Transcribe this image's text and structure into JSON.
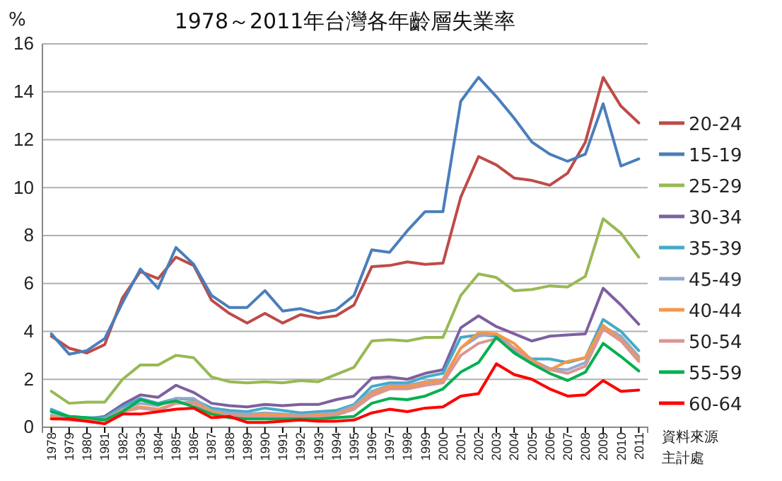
{
  "chart_data": {
    "type": "line",
    "title": "1978～2011年台灣各年齡層失業率",
    "ylabel": "%",
    "annotations": [
      "資料來源",
      "主計處"
    ],
    "categories": [
      "1978",
      "1979",
      "1980",
      "1981",
      "1982",
      "1983",
      "1984",
      "1985",
      "1986",
      "1987",
      "1988",
      "1989",
      "1990",
      "1991",
      "1992",
      "1993",
      "1994",
      "1995",
      "1996",
      "1997",
      "1998",
      "1999",
      "2000",
      "2001",
      "2002",
      "2003",
      "2004",
      "2005",
      "2006",
      "2007",
      "2008",
      "2009",
      "2010",
      "2011"
    ],
    "ylim": [
      0,
      16
    ],
    "yticks": [
      0,
      2,
      4,
      6,
      8,
      10,
      12,
      14,
      16
    ],
    "grid": "y",
    "legend": "right",
    "marker": "none",
    "line_style": "solid",
    "series": [
      {
        "name": "20-24",
        "color": "#be4b48",
        "values": [
          3.8,
          3.3,
          3.1,
          3.45,
          5.4,
          6.5,
          6.2,
          7.1,
          6.75,
          5.3,
          4.75,
          4.35,
          4.75,
          4.35,
          4.7,
          4.55,
          4.65,
          5.1,
          6.7,
          6.75,
          6.9,
          6.8,
          6.85,
          9.6,
          11.3,
          10.95,
          10.4,
          10.3,
          10.1,
          10.6,
          11.9,
          14.6,
          13.4,
          12.7
        ]
      },
      {
        "name": "15-19",
        "color": "#4a7ebb",
        "values": [
          3.9,
          3.05,
          3.2,
          3.7,
          5.2,
          6.6,
          5.8,
          7.5,
          6.8,
          5.5,
          5.0,
          5.0,
          5.7,
          4.85,
          4.95,
          4.75,
          4.9,
          5.5,
          7.4,
          7.3,
          8.2,
          9.0,
          9.0,
          13.6,
          14.6,
          13.8,
          12.9,
          11.9,
          11.4,
          11.1,
          11.4,
          13.5,
          10.9,
          11.2
        ]
      },
      {
        "name": "25-29",
        "color": "#98b954",
        "values": [
          1.5,
          1.0,
          1.05,
          1.05,
          2.0,
          2.6,
          2.6,
          3.0,
          2.9,
          2.1,
          1.9,
          1.85,
          1.9,
          1.85,
          1.95,
          1.9,
          2.2,
          2.5,
          3.6,
          3.65,
          3.6,
          3.75,
          3.75,
          5.5,
          6.4,
          6.25,
          5.7,
          5.75,
          5.9,
          5.85,
          6.3,
          8.7,
          8.1,
          7.1
        ]
      },
      {
        "name": "30-34",
        "color": "#7d60a0",
        "values": [
          0.7,
          0.4,
          0.35,
          0.45,
          0.95,
          1.35,
          1.25,
          1.75,
          1.45,
          1.0,
          0.9,
          0.85,
          0.95,
          0.9,
          0.95,
          0.95,
          1.15,
          1.3,
          2.05,
          2.1,
          2.0,
          2.25,
          2.4,
          4.15,
          4.65,
          4.2,
          3.9,
          3.6,
          3.8,
          3.85,
          3.9,
          5.8,
          5.1,
          4.3
        ]
      },
      {
        "name": "35-39",
        "color": "#46aac5",
        "values": [
          0.75,
          0.45,
          0.4,
          0.4,
          0.85,
          1.2,
          1.0,
          1.2,
          1.15,
          0.8,
          0.7,
          0.65,
          0.8,
          0.7,
          0.6,
          0.65,
          0.7,
          0.95,
          1.7,
          1.85,
          1.85,
          2.1,
          2.25,
          3.75,
          3.85,
          3.8,
          3.2,
          2.85,
          2.85,
          2.7,
          2.9,
          4.5,
          4.0,
          3.2
        ]
      },
      {
        "name": "45-49",
        "color": "#92a9cf",
        "values": [
          0.5,
          0.35,
          0.3,
          0.35,
          0.75,
          1.0,
          0.9,
          1.2,
          1.2,
          0.7,
          0.6,
          0.55,
          0.6,
          0.55,
          0.5,
          0.55,
          0.6,
          0.9,
          1.5,
          1.75,
          1.75,
          1.9,
          2.0,
          3.3,
          3.8,
          3.9,
          3.3,
          2.8,
          2.45,
          2.4,
          2.7,
          4.2,
          3.8,
          2.95
        ]
      },
      {
        "name": "40-44",
        "color": "#f79646",
        "values": [
          0.45,
          0.3,
          0.3,
          0.3,
          0.7,
          0.85,
          0.75,
          1.0,
          1.05,
          0.65,
          0.5,
          0.45,
          0.55,
          0.5,
          0.45,
          0.5,
          0.55,
          0.8,
          1.4,
          1.7,
          1.7,
          1.85,
          1.95,
          3.3,
          3.95,
          3.9,
          3.5,
          2.8,
          2.4,
          2.75,
          2.9,
          4.25,
          3.65,
          2.85
        ]
      },
      {
        "name": "50-54",
        "color": "#d99694",
        "values": [
          0.4,
          0.3,
          0.25,
          0.3,
          0.65,
          0.8,
          0.7,
          1.0,
          1.0,
          0.55,
          0.5,
          0.4,
          0.45,
          0.45,
          0.4,
          0.45,
          0.5,
          0.75,
          1.3,
          1.6,
          1.6,
          1.75,
          1.85,
          3.0,
          3.5,
          3.7,
          3.3,
          2.7,
          2.4,
          2.25,
          2.55,
          4.1,
          3.6,
          2.75
        ]
      },
      {
        "name": "55-59",
        "color": "#00b050",
        "values": [
          0.65,
          0.45,
          0.4,
          0.3,
          0.65,
          1.15,
          0.95,
          1.1,
          0.85,
          0.55,
          0.4,
          0.35,
          0.35,
          0.35,
          0.35,
          0.35,
          0.4,
          0.45,
          1.0,
          1.2,
          1.15,
          1.3,
          1.6,
          2.3,
          2.7,
          3.75,
          3.1,
          2.65,
          2.25,
          1.95,
          2.3,
          3.5,
          2.95,
          2.35
        ]
      },
      {
        "name": "60-64",
        "color": "#ff0000",
        "values": [
          0.35,
          0.35,
          0.25,
          0.15,
          0.55,
          0.55,
          0.65,
          0.75,
          0.8,
          0.4,
          0.45,
          0.2,
          0.2,
          0.25,
          0.3,
          0.25,
          0.25,
          0.3,
          0.6,
          0.75,
          0.65,
          0.8,
          0.85,
          1.3,
          1.4,
          2.65,
          2.2,
          2.0,
          1.6,
          1.3,
          1.35,
          1.95,
          1.5,
          1.55
        ]
      }
    ]
  }
}
